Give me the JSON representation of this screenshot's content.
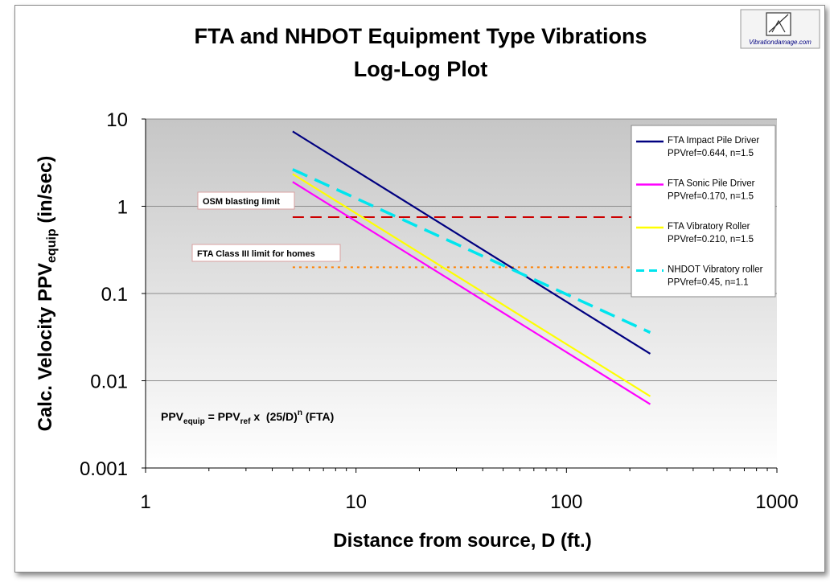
{
  "logo": {
    "caption": "Vibrationdamage.com"
  },
  "chart_data": {
    "type": "line",
    "title_line1": "FTA and NHDOT Equipment Type Vibrations",
    "title_line2": "Log-Log Plot",
    "xlabel": "Distance from source, D (ft.)",
    "ylabel_prefix": "Calc. Velocity PPV",
    "ylabel_sub": "equip",
    "ylabel_suffix": " (in/sec)",
    "x_scale": "log",
    "y_scale": "log",
    "xlim": [
      1,
      1000
    ],
    "ylim": [
      0.001,
      10
    ],
    "x_ticks": [
      "1",
      "10",
      "100",
      "1000"
    ],
    "y_ticks": [
      "10",
      "1",
      "0.1",
      "0.01",
      "0.001"
    ],
    "grid": "horizontal",
    "legend_position": "right",
    "series": [
      {
        "name": "FTA Impact Pile Driver",
        "params": "PPVref=0.644, n=1.5",
        "ppv_ref": 0.644,
        "n": 1.5,
        "color": "#000080",
        "dash": "solid",
        "x_range": [
          5,
          250
        ]
      },
      {
        "name": "FTA Sonic Pile Driver",
        "params": "PPVref=0.170, n=1.5",
        "ppv_ref": 0.17,
        "n": 1.5,
        "color": "#ff00ff",
        "dash": "solid",
        "x_range": [
          5,
          250
        ]
      },
      {
        "name": "FTA Vibratory Roller",
        "params": "PPVref=0.210, n=1.5",
        "ppv_ref": 0.21,
        "n": 1.5,
        "color": "#ffff00",
        "dash": "solid",
        "x_range": [
          5,
          250
        ]
      },
      {
        "name": "NHDOT Vibratory roller",
        "params": "PPVref=0.45, n=1.1",
        "ppv_ref": 0.45,
        "n": 1.1,
        "color": "#00e5ee",
        "dash": "dashed",
        "x_range": [
          5,
          250
        ]
      }
    ],
    "limits": [
      {
        "label": "OSM blasting limit",
        "value": 0.75,
        "color": "#cc0000",
        "dash": "dashed",
        "x_range": [
          5,
          250
        ]
      },
      {
        "label": "FTA Class III limit for homes",
        "value": 0.2,
        "color": "#ff8000",
        "dash": "dotted",
        "x_range": [
          5,
          250
        ]
      }
    ],
    "formula": {
      "ppv": "PPV",
      "equip_sub": "equip",
      "eq_ppv": " = PPV",
      "ref_sub": "ref",
      "times": " x  (25/D)",
      "exp": "n",
      "tail": " (FTA)"
    }
  }
}
